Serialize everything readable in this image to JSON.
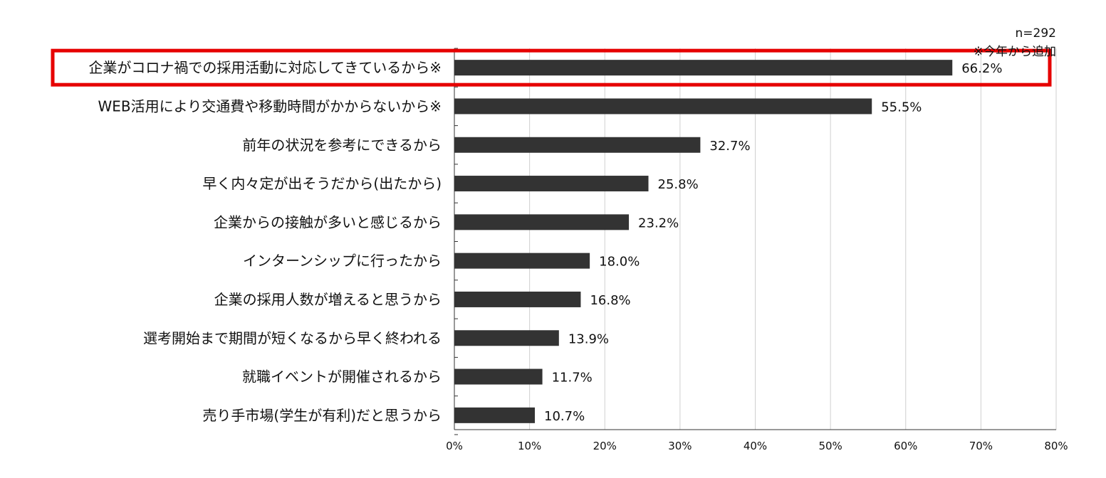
{
  "chart_data": {
    "type": "bar",
    "orientation": "horizontal",
    "title": "",
    "xlabel": "",
    "ylabel": "",
    "xlim": [
      0,
      80
    ],
    "x_ticks": [
      "0%",
      "10%",
      "20%",
      "30%",
      "40%",
      "50%",
      "60%",
      "70%",
      "80%"
    ],
    "x_tick_values": [
      0,
      10,
      20,
      30,
      40,
      50,
      60,
      70,
      80
    ],
    "grid": true,
    "legend": "none",
    "annotations": {
      "sample_size": "n=292",
      "footnote": "※今年から追加"
    },
    "categories": [
      "企業がコロナ禍での採用活動に対応してきているから※",
      "WEB活用により交通費や移動時間がかからないから※",
      "前年の状況を参考にできるから",
      "早く内々定が出そうだから(出たから)",
      "企業からの接触が多いと感じるから",
      "インターンシップに行ったから",
      "企業の採用人数が増えると思うから",
      "選考開始まで期間が短くなるから早く終われる",
      "就職イベントが開催されるから",
      "売り手市場(学生が有利)だと思うから"
    ],
    "values": [
      66.2,
      55.5,
      32.7,
      25.8,
      23.2,
      18.0,
      16.8,
      13.9,
      11.7,
      10.7
    ],
    "value_labels": [
      "66.2%",
      "55.5%",
      "32.7%",
      "25.8%",
      "23.2%",
      "18.0%",
      "16.8%",
      "13.9%",
      "11.7%",
      "10.7%"
    ],
    "highlight_index": 0,
    "colors": {
      "bar": "#333333",
      "grid": "#cfcfcf",
      "axis": "#333333",
      "highlight": "#e60000"
    }
  }
}
